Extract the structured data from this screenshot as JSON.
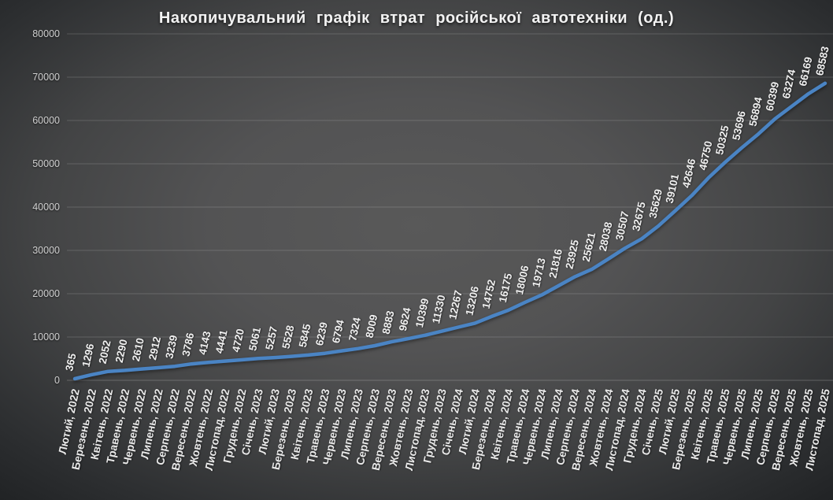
{
  "title": "Накопичувальний графік втрат російської автотехніки (од.)",
  "colors": {
    "line": "#4a84c4",
    "gridline": "rgba(255,255,255,0.16)",
    "zero_axis": "rgba(255,255,255,0.22)",
    "y_tick_label": "#cfcfcf",
    "x_tick_label": "#e9e9e9",
    "data_label": "#f0f0f0",
    "title_color": "#f2f2f2",
    "background_center": "#595959",
    "background_edge": "#1d1f21"
  },
  "chart_data": {
    "type": "line",
    "title": "Накопичувальний графік втрат російської автотехніки (од.)",
    "xlabel": "",
    "ylabel": "",
    "ylim": [
      0,
      80000
    ],
    "y_ticks": [
      0,
      10000,
      20000,
      30000,
      40000,
      50000,
      60000,
      70000,
      80000
    ],
    "grid": true,
    "legend": false,
    "data_labels": true,
    "label_rotation_deg": -78,
    "categories": [
      "Лютий, 2022",
      "Березень, 2022",
      "Квітень, 2022",
      "Травень, 2022",
      "Червень, 2022",
      "Липень, 2022",
      "Серпень, 2022",
      "Вересень, 2022",
      "Жовтень, 2022",
      "Листопад, 2022",
      "Грудень, 2022",
      "Січень, 2023",
      "Лютий, 2023",
      "Березень, 2023",
      "Квітень, 2023",
      "Травень, 2023",
      "Червень, 2023",
      "Липень, 2023",
      "Серпень, 2023",
      "Вересень, 2023",
      "Жовтень, 2023",
      "Листопад, 2023",
      "Грудень, 2023",
      "Січень, 2024",
      "Лютий, 2024",
      "Березень, 2024",
      "Квітень, 2024",
      "Травень, 2024",
      "Червень, 2024",
      "Липень, 2024",
      "Серпень, 2024",
      "Вересень, 2024",
      "Жовтень, 2024",
      "Листопад, 2024",
      "Грудень, 2024",
      "Січень, 2025",
      "Лютий, 2025",
      "Березень, 2025",
      "Квітень, 2025",
      "Травень, 2025",
      "Червень, 2025",
      "Липень, 2025",
      "Серпень, 2025",
      "Вересень, 2025",
      "Жовтень, 2025",
      "Листопад, 2025"
    ],
    "values": [
      365,
      1296,
      2052,
      2290,
      2610,
      2912,
      3239,
      3786,
      4143,
      4441,
      4720,
      5061,
      5257,
      5528,
      5845,
      6239,
      6794,
      7324,
      8009,
      8883,
      9624,
      10399,
      11330,
      12267,
      13206,
      14752,
      16175,
      18006,
      19713,
      21816,
      23925,
      25621,
      28038,
      30507,
      32675,
      35629,
      39101,
      42646,
      46750,
      50325,
      53696,
      56894,
      60399,
      63274,
      66169,
      68583
    ]
  }
}
